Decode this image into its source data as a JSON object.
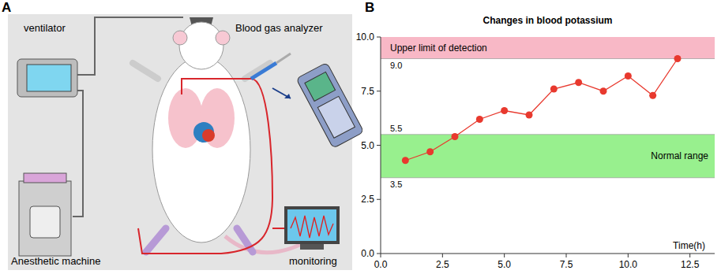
{
  "diagram": {
    "panel_label": "A",
    "labels": {
      "ventilator": "ventilator",
      "analyzer": "Blood gas analyzer",
      "anesthetic": "Anesthetic machine",
      "monitor": "monitoring"
    }
  },
  "chart_data": {
    "panel_label": "B",
    "type": "line",
    "title": "Changes in blood potassium",
    "x_label": "Time(h)",
    "x": [
      1,
      2,
      3,
      4,
      5,
      6,
      7,
      8,
      9,
      10,
      11,
      12
    ],
    "values": [
      4.3,
      4.7,
      5.4,
      6.2,
      6.6,
      6.4,
      7.6,
      7.9,
      7.5,
      8.2,
      7.3,
      9.0
    ],
    "color": "#e8392e",
    "marker": "circle",
    "xlim": [
      0,
      13.5
    ],
    "xticks": [
      {
        "value": 0,
        "label": "0.0"
      },
      {
        "value": 2.5,
        "label": "2.5"
      },
      {
        "value": 5,
        "label": "5.0"
      },
      {
        "value": 7.5,
        "label": "7.5"
      },
      {
        "value": 10,
        "label": "10.0"
      },
      {
        "value": 12.5,
        "label": "12.5"
      }
    ],
    "ylim": [
      0,
      10
    ],
    "yticks": [
      {
        "value": 0,
        "label": "0.0"
      },
      {
        "value": 2.5,
        "label": "2.5"
      },
      {
        "value": 5,
        "label": "5.0"
      },
      {
        "value": 7.5,
        "label": "7.5"
      },
      {
        "value": 10,
        "label": "10.0"
      }
    ],
    "annotations": [
      {
        "text": "Upper limit of detection",
        "ymin": 9.0,
        "ymax": 10,
        "ymin_label": "9.0",
        "color": "#f8b8c6"
      },
      {
        "text": "Normal range",
        "ymin": 3.5,
        "ymax": 5.5,
        "ymin_label": "3.5",
        "ymax_label": "5.5",
        "color": "#98f08e"
      }
    ]
  }
}
